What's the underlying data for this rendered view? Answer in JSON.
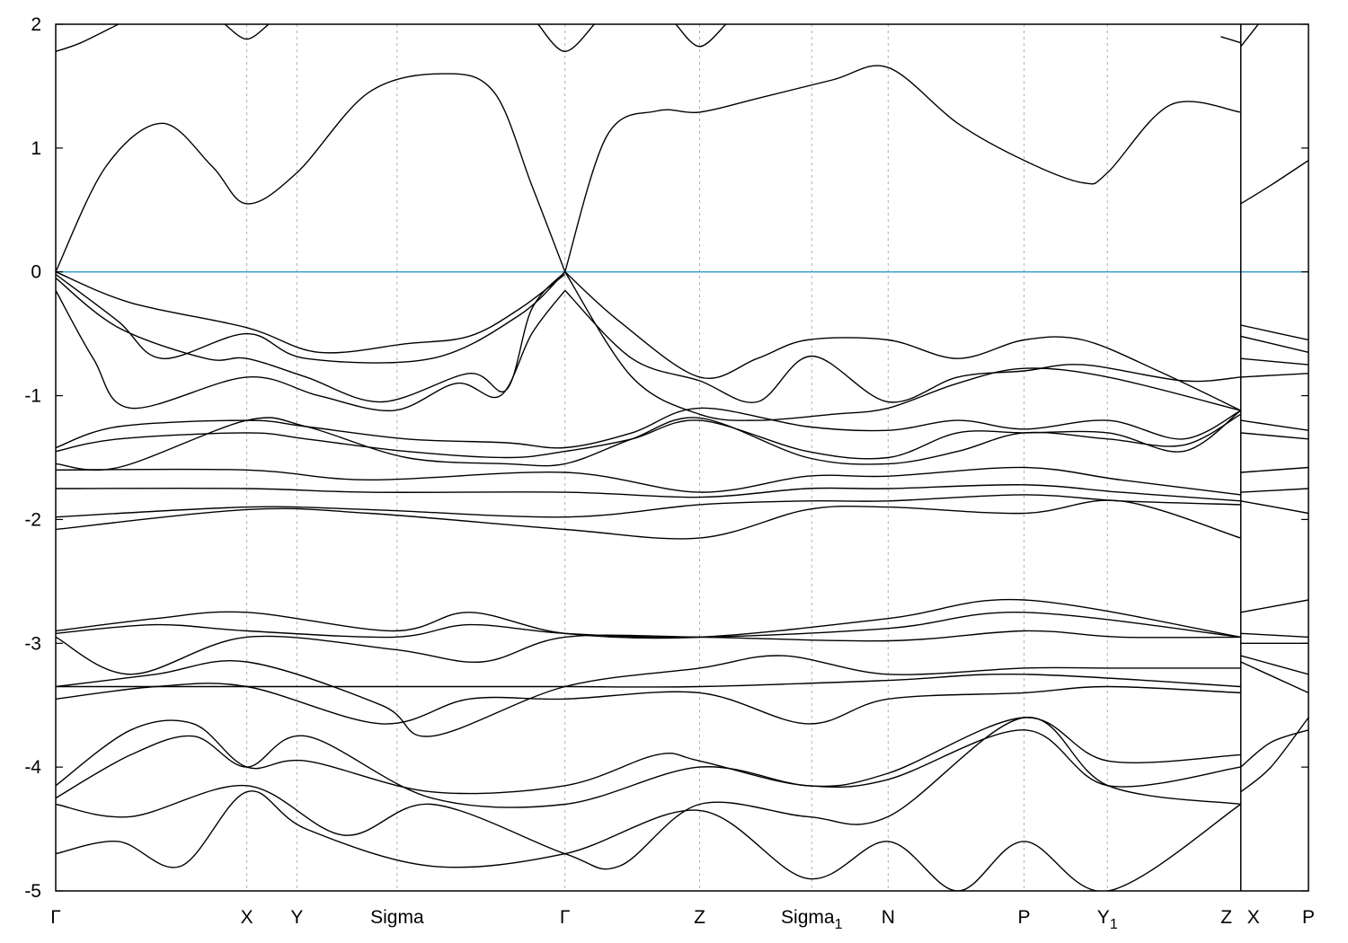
{
  "chart_data": {
    "type": "line",
    "title": "",
    "xlabel": "",
    "ylabel": "",
    "ylim": [
      -5,
      2
    ],
    "yticks": [
      -5,
      -4,
      -3,
      -2,
      -1,
      0,
      1,
      2
    ],
    "grid": "vertical dashed lines at high-symmetry points",
    "reference_line": {
      "y": 0,
      "color": "#3aa0c8"
    },
    "kpoints": [
      {
        "label": "Γ",
        "sub": "",
        "x": 0
      },
      {
        "label": "X",
        "sub": "",
        "x": 0.1525
      },
      {
        "label": "Y",
        "sub": "",
        "x": 0.1925
      },
      {
        "label": "Sigma",
        "sub": "",
        "x": 0.2725
      },
      {
        "label": "Γ",
        "sub": "",
        "x": 0.4065
      },
      {
        "label": "Z",
        "sub": "",
        "x": 0.514
      },
      {
        "label": "Sigma",
        "sub": "1",
        "x": 0.6035
      },
      {
        "label": "N",
        "sub": "",
        "x": 0.6645
      },
      {
        "label": "P",
        "sub": "",
        "x": 0.773
      },
      {
        "label": "Y",
        "sub": "1",
        "x": 0.8395
      },
      {
        "label": "Z",
        "sub": "",
        "x": 0.946
      },
      {
        "label": "X",
        "sub": "",
        "x": 0.946
      },
      {
        "label": "P",
        "sub": "",
        "x": 1.0
      }
    ],
    "segment_break": 0.946,
    "series": [
      {
        "x": [
          0,
          0.04,
          0.085,
          0.125,
          0.1525,
          0.1925,
          0.25,
          0.31,
          0.35,
          0.38,
          0.4065
        ],
        "y": [
          0,
          0.85,
          1.2,
          0.85,
          0.55,
          0.8,
          1.45,
          1.6,
          1.45,
          0.7,
          0
        ]
      },
      {
        "x": [
          0.4065,
          0.44,
          0.48,
          0.514,
          0.56,
          0.62,
          0.6645,
          0.72,
          0.773,
          0.82,
          0.8395,
          0.89,
          0.946
        ],
        "y": [
          0,
          1.1,
          1.3,
          1.29,
          1.4,
          1.55,
          1.65,
          1.2,
          0.9,
          0.72,
          0.8,
          1.35,
          1.29
        ]
      },
      {
        "x": [
          0.946,
          0.97,
          1.0
        ],
        "y": [
          0.55,
          0.7,
          0.9
        ]
      },
      {
        "x": [
          0,
          0.02,
          0.05
        ],
        "y": [
          1.78,
          1.85,
          2.0
        ]
      },
      {
        "x": [
          0.135,
          0.1525,
          0.17
        ],
        "y": [
          2.0,
          1.88,
          2.0
        ]
      },
      {
        "x": [
          0.385,
          0.4065,
          0.43
        ],
        "y": [
          2.0,
          1.78,
          2.0
        ]
      },
      {
        "x": [
          0.495,
          0.514,
          0.535
        ],
        "y": [
          2.0,
          1.82,
          2.0
        ]
      },
      {
        "x": [
          0.93,
          0.946
        ],
        "y": [
          1.9,
          1.85
        ]
      },
      {
        "x": [
          0.946,
          0.96
        ],
        "y": [
          1.82,
          2.0
        ]
      },
      {
        "x": [
          0,
          0.06,
          0.1525,
          0.21,
          0.28,
          0.33,
          0.37,
          0.4065
        ],
        "y": [
          0,
          -0.25,
          -0.45,
          -0.65,
          -0.58,
          -0.52,
          -0.3,
          -0.02
        ]
      },
      {
        "x": [
          0,
          0.05,
          0.085,
          0.1525,
          0.2,
          0.3,
          0.37,
          0.4065
        ],
        "y": [
          -0.02,
          -0.4,
          -0.7,
          -0.5,
          -0.7,
          -0.7,
          -0.35,
          0
        ]
      },
      {
        "x": [
          0,
          0.03,
          0.06,
          0.1525,
          0.21,
          0.27,
          0.32,
          0.355,
          0.38,
          0.4065
        ],
        "y": [
          -0.15,
          -0.7,
          -1.1,
          -0.85,
          -1.0,
          -1.12,
          -0.9,
          -1.0,
          -0.5,
          -0.15
        ]
      },
      {
        "x": [
          0,
          0.05,
          0.12,
          0.1525,
          0.2,
          0.26,
          0.33,
          0.36,
          0.38,
          0.4065
        ],
        "y": [
          -0.05,
          -0.45,
          -0.7,
          -0.7,
          -0.85,
          -1.05,
          -0.82,
          -0.95,
          -0.3,
          0
        ]
      },
      {
        "x": [
          0.4065,
          0.45,
          0.514,
          0.56,
          0.6,
          0.6645,
          0.72,
          0.773,
          0.82,
          0.88,
          0.946
        ],
        "y": [
          0,
          -0.4,
          -0.85,
          -0.7,
          -0.55,
          -0.55,
          -0.7,
          -0.55,
          -0.55,
          -0.8,
          -1.12
        ]
      },
      {
        "x": [
          0.4065,
          0.46,
          0.514,
          0.56,
          0.6035,
          0.6645,
          0.72,
          0.773,
          0.82,
          0.9,
          0.946
        ],
        "y": [
          -0.15,
          -0.7,
          -0.88,
          -1.05,
          -0.68,
          -1.05,
          -0.85,
          -0.8,
          -0.75,
          -0.88,
          -0.85
        ]
      },
      {
        "x": [
          0.4065,
          0.46,
          0.514,
          0.56,
          0.62,
          0.6645,
          0.72,
          0.773,
          0.84,
          0.946
        ],
        "y": [
          0,
          -0.85,
          -1.15,
          -1.2,
          -1.15,
          -1.1,
          -0.9,
          -0.78,
          -0.85,
          -1.12
        ]
      },
      {
        "x": [
          0.946,
          1.0
        ],
        "y": [
          -0.43,
          -0.55
        ]
      },
      {
        "x": [
          0.946,
          1.0
        ],
        "y": [
          -0.52,
          -0.65
        ]
      },
      {
        "x": [
          0.946,
          1.0
        ],
        "y": [
          -0.7,
          -0.75
        ]
      },
      {
        "x": [
          0.946,
          1.0
        ],
        "y": [
          -0.85,
          -0.82
        ]
      },
      {
        "x": [
          0,
          0.05,
          0.1525,
          0.2,
          0.28,
          0.36,
          0.4065,
          0.46,
          0.514,
          0.6,
          0.6645,
          0.72,
          0.773,
          0.84,
          0.9,
          0.946
        ],
        "y": [
          -1.42,
          -1.25,
          -1.2,
          -1.25,
          -1.35,
          -1.38,
          -1.42,
          -1.3,
          -1.1,
          -1.25,
          -1.28,
          -1.2,
          -1.27,
          -1.2,
          -1.35,
          -1.12
        ]
      },
      {
        "x": [
          0,
          0.05,
          0.1525,
          0.2,
          0.28,
          0.36,
          0.4065,
          0.46,
          0.514,
          0.6,
          0.6645,
          0.72,
          0.773,
          0.84,
          0.9,
          0.946
        ],
        "y": [
          -1.45,
          -1.35,
          -1.3,
          -1.35,
          -1.45,
          -1.5,
          -1.45,
          -1.35,
          -1.2,
          -1.45,
          -1.5,
          -1.3,
          -1.3,
          -1.3,
          -1.45,
          -1.12
        ]
      },
      {
        "x": [
          0,
          0.05,
          0.1525,
          0.2,
          0.28,
          0.36,
          0.4065,
          0.46,
          0.514,
          0.6,
          0.6645,
          0.72,
          0.773,
          0.84,
          0.9,
          0.946
        ],
        "y": [
          -1.55,
          -1.58,
          -1.2,
          -1.25,
          -1.5,
          -1.55,
          -1.55,
          -1.35,
          -1.18,
          -1.5,
          -1.55,
          -1.45,
          -1.3,
          -1.35,
          -1.4,
          -1.15
        ]
      },
      {
        "x": [
          0.946,
          1.0
        ],
        "y": [
          -1.2,
          -1.28
        ]
      },
      {
        "x": [
          0.946,
          1.0
        ],
        "y": [
          -1.3,
          -1.35
        ]
      },
      {
        "x": [
          0,
          0.1525,
          0.25,
          0.4065,
          0.514,
          0.6,
          0.6645,
          0.773,
          0.85,
          0.946
        ],
        "y": [
          -1.6,
          -1.6,
          -1.68,
          -1.62,
          -1.78,
          -1.65,
          -1.65,
          -1.58,
          -1.68,
          -1.8
        ]
      },
      {
        "x": [
          0,
          0.1525,
          0.25,
          0.4065,
          0.514,
          0.6,
          0.6645,
          0.773,
          0.85,
          0.946
        ],
        "y": [
          -1.75,
          -1.75,
          -1.78,
          -1.78,
          -1.82,
          -1.75,
          -1.75,
          -1.72,
          -1.78,
          -1.85
        ]
      },
      {
        "x": [
          0,
          0.1525,
          0.25,
          0.4065,
          0.514,
          0.6,
          0.6645,
          0.773,
          0.85,
          0.946
        ],
        "y": [
          -1.98,
          -1.9,
          -1.92,
          -1.98,
          -1.88,
          -1.85,
          -1.85,
          -1.8,
          -1.85,
          -1.88
        ]
      },
      {
        "x": [
          0,
          0.1525,
          0.25,
          0.4065,
          0.514,
          0.6,
          0.6645,
          0.773,
          0.85,
          0.946
        ],
        "y": [
          -2.08,
          -1.92,
          -1.95,
          -2.08,
          -2.15,
          -1.92,
          -1.9,
          -1.95,
          -1.85,
          -2.15
        ]
      },
      {
        "x": [
          0.946,
          1.0
        ],
        "y": [
          -1.62,
          -1.58
        ]
      },
      {
        "x": [
          0.946,
          1.0
        ],
        "y": [
          -1.78,
          -1.75
        ]
      },
      {
        "x": [
          0.946,
          1.0
        ],
        "y": [
          -1.85,
          -1.95
        ]
      },
      {
        "x": [
          0,
          0.08,
          0.1525,
          0.27,
          0.33,
          0.4065,
          0.514,
          0.6645,
          0.773,
          0.946
        ],
        "y": [
          -2.9,
          -2.8,
          -2.75,
          -2.9,
          -2.75,
          -2.92,
          -2.95,
          -2.8,
          -2.65,
          -2.95
        ]
      },
      {
        "x": [
          0,
          0.08,
          0.1525,
          0.27,
          0.33,
          0.4065,
          0.514,
          0.6645,
          0.773,
          0.946
        ],
        "y": [
          -2.92,
          -2.85,
          -2.9,
          -2.95,
          -2.85,
          -2.92,
          -2.95,
          -2.88,
          -2.75,
          -2.95
        ]
      },
      {
        "x": [
          0,
          0.06,
          0.1525,
          0.27,
          0.34,
          0.4065,
          0.514,
          0.6645,
          0.773,
          0.85,
          0.946
        ],
        "y": [
          -2.95,
          -3.25,
          -2.95,
          -3.05,
          -3.15,
          -2.95,
          -2.95,
          -2.98,
          -2.9,
          -2.95,
          -2.95
        ]
      },
      {
        "x": [
          0.946,
          1.0
        ],
        "y": [
          -2.75,
          -2.65
        ]
      },
      {
        "x": [
          0.946,
          1.0
        ],
        "y": [
          -2.92,
          -2.95
        ]
      },
      {
        "x": [
          0.946,
          1.0
        ],
        "y": [
          -3.0,
          -3.0
        ]
      },
      {
        "x": [
          0,
          0.08,
          0.1525,
          0.26,
          0.3,
          0.4065,
          0.514,
          0.58,
          0.6645,
          0.773,
          0.84,
          0.946
        ],
        "y": [
          -3.35,
          -3.25,
          -3.15,
          -3.5,
          -3.75,
          -3.35,
          -3.2,
          -3.1,
          -3.25,
          -3.2,
          -3.2,
          -3.2
        ]
      },
      {
        "x": [
          0,
          0.08,
          0.1525,
          0.26,
          0.33,
          0.4065,
          0.514,
          0.6,
          0.6645,
          0.773,
          0.84,
          0.946
        ],
        "y": [
          -3.45,
          -3.35,
          -3.35,
          -3.65,
          -3.45,
          -3.45,
          -3.4,
          -3.65,
          -3.45,
          -3.4,
          -3.35,
          -3.4
        ]
      },
      {
        "x": [
          0,
          0.1525,
          0.3,
          0.4065,
          0.514,
          0.6645,
          0.773,
          0.946
        ],
        "y": [
          -3.35,
          -3.35,
          -3.35,
          -3.35,
          -3.35,
          -3.3,
          -3.25,
          -3.35
        ]
      },
      {
        "x": [
          0.946,
          1.0
        ],
        "y": [
          -3.1,
          -3.25
        ]
      },
      {
        "x": [
          0.946,
          1.0
        ],
        "y": [
          -3.15,
          -3.4
        ]
      },
      {
        "x": [
          0,
          0.06,
          0.11,
          0.1525,
          0.2,
          0.3,
          0.4065,
          0.48,
          0.514,
          0.6,
          0.6645,
          0.773,
          0.84,
          0.946
        ],
        "y": [
          -4.15,
          -3.7,
          -3.65,
          -4.0,
          -3.95,
          -4.2,
          -4.15,
          -3.9,
          -3.95,
          -4.15,
          -4.05,
          -3.6,
          -3.95,
          -3.9
        ]
      },
      {
        "x": [
          0,
          0.06,
          0.11,
          0.1525,
          0.2,
          0.3,
          0.4065,
          0.514,
          0.6,
          0.6645,
          0.773,
          0.84,
          0.946
        ],
        "y": [
          -4.25,
          -3.9,
          -3.75,
          -4.0,
          -3.75,
          -4.25,
          -4.3,
          -4.0,
          -4.15,
          -4.1,
          -3.7,
          -4.15,
          -4.0
        ]
      },
      {
        "x": [
          0,
          0.06,
          0.1525,
          0.23,
          0.3,
          0.4065,
          0.45,
          0.514,
          0.6,
          0.6645,
          0.773,
          0.84,
          0.946
        ],
        "y": [
          -4.3,
          -4.4,
          -4.15,
          -4.55,
          -4.3,
          -4.7,
          -4.8,
          -4.3,
          -4.4,
          -4.4,
          -3.6,
          -4.15,
          -4.3
        ]
      },
      {
        "x": [
          0,
          0.05,
          0.1,
          0.1525,
          0.2,
          0.3,
          0.4065,
          0.514,
          0.6,
          0.6645,
          0.72,
          0.773,
          0.84,
          0.946
        ],
        "y": [
          -4.7,
          -4.6,
          -4.8,
          -4.2,
          -4.5,
          -4.8,
          -4.7,
          -4.35,
          -4.9,
          -4.6,
          -5.0,
          -4.6,
          -5.0,
          -4.3
        ]
      },
      {
        "x": [
          0.946,
          0.97,
          1.0
        ],
        "y": [
          -4.2,
          -4.0,
          -3.6
        ]
      },
      {
        "x": [
          0.946,
          0.97,
          1.0
        ],
        "y": [
          -4.0,
          -3.8,
          -3.7
        ]
      }
    ]
  }
}
